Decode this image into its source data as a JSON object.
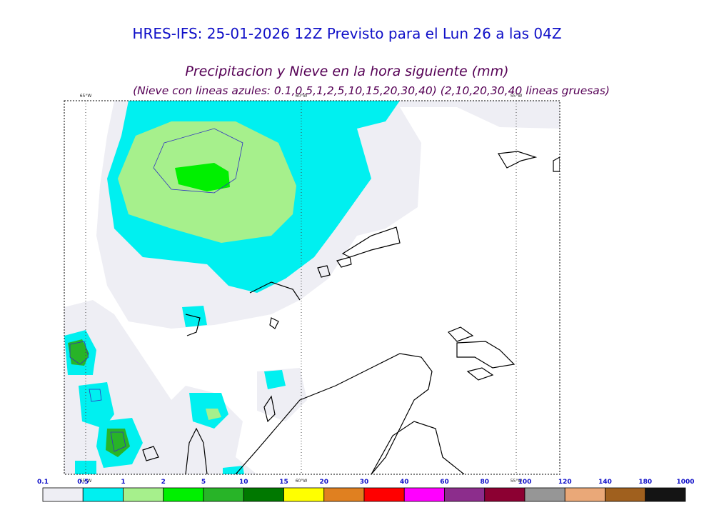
{
  "header": {
    "title": "HRES-IFS: 25-01-2026 12Z Previsto para el Lun 26 a las 04Z",
    "subtitle": "Precipitacion y Nieve en la hora siguiente (mm)",
    "note": "(Nieve con lineas azules: 0.1,0.5,1,2,5,10,15,20,30,40)  (2,10,20,30,40 lineas gruesas)"
  },
  "map": {
    "longitude_labels": [
      "65°W",
      "60°W",
      "55°W"
    ]
  },
  "legend": {
    "levels": [
      0.1,
      0.5,
      1,
      2,
      5,
      10,
      15,
      20,
      30,
      40,
      60,
      80,
      100,
      120,
      140,
      180,
      1000
    ],
    "colors": [
      "#eeeef4",
      "#00f0f0",
      "#a6f08c",
      "#00f000",
      "#28b428",
      "#007800",
      "#ffff00",
      "#e08020",
      "#ff0000",
      "#ff00ff",
      "#8c2d8c",
      "#8c0032",
      "#969696",
      "#eaa878",
      "#a0601e",
      "#141414"
    ]
  }
}
